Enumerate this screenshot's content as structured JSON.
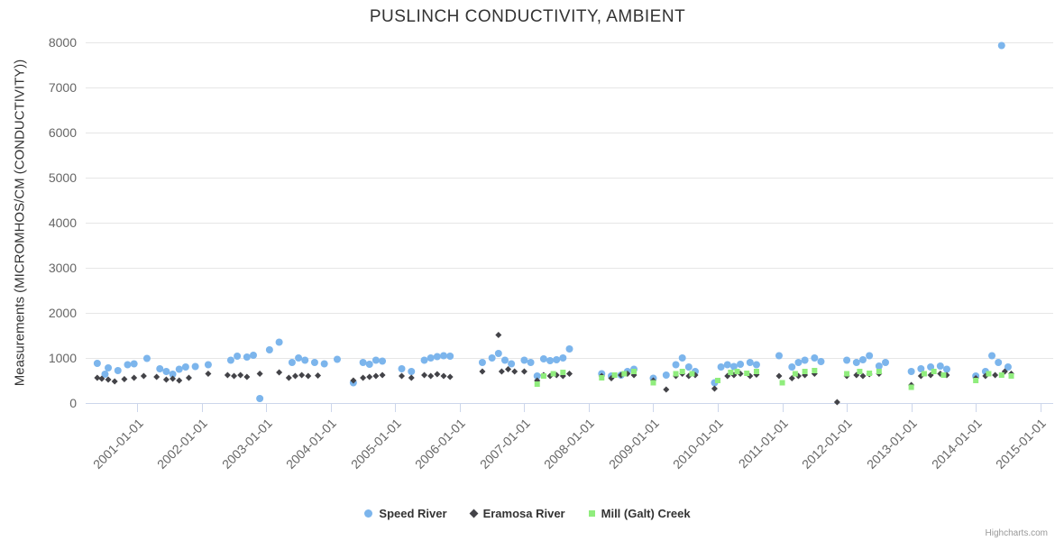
{
  "credits": "Highcharts.com",
  "chart_data": {
    "type": "scatter",
    "title": "PUSLINCH CONDUCTIVITY, AMBIENT",
    "xlabel": "",
    "ylabel": "Measurements (MICROMHOS/CM (CONDUCTIVITY))",
    "xlim": [
      2000.2,
      2015.2
    ],
    "ylim": [
      0,
      8000
    ],
    "yticks": [
      0,
      1000,
      2000,
      3000,
      4000,
      5000,
      6000,
      7000,
      8000
    ],
    "xticks": [
      2001,
      2002,
      2003,
      2004,
      2005,
      2006,
      2007,
      2008,
      2009,
      2010,
      2011,
      2012,
      2013,
      2014,
      2015
    ],
    "xtick_labels": [
      "2001-01-01",
      "2002-01-01",
      "2003-01-01",
      "2004-01-01",
      "2005-01-01",
      "2006-01-01",
      "2007-01-01",
      "2008-01-01",
      "2009-01-01",
      "2010-01-01",
      "2011-01-01",
      "2012-01-01",
      "2013-01-01",
      "2014-01-01",
      "2015-01-01"
    ],
    "grid": true,
    "legend_position": "bottom",
    "colors": {
      "grid": "#e6e6e6",
      "axis_line": "#ccd6eb",
      "title": "#333333",
      "tick_label": "#666666",
      "legend_text": "#333333",
      "credits": "#999999",
      "background": "#ffffff"
    },
    "series": [
      {
        "name": "Speed River",
        "marker": "circle",
        "color": "#7cb5ec",
        "points": [
          [
            2000.38,
            880
          ],
          [
            2000.5,
            640
          ],
          [
            2000.55,
            780
          ],
          [
            2000.7,
            720
          ],
          [
            2000.85,
            850
          ],
          [
            2000.95,
            870
          ],
          [
            2001.15,
            990
          ],
          [
            2001.35,
            760
          ],
          [
            2001.45,
            700
          ],
          [
            2001.55,
            640
          ],
          [
            2001.65,
            750
          ],
          [
            2001.75,
            800
          ],
          [
            2001.9,
            810
          ],
          [
            2002.1,
            850
          ],
          [
            2002.45,
            950
          ],
          [
            2002.55,
            1040
          ],
          [
            2002.7,
            1020
          ],
          [
            2002.8,
            1060
          ],
          [
            2002.9,
            100
          ],
          [
            2003.05,
            1180
          ],
          [
            2003.2,
            1350
          ],
          [
            2003.4,
            900
          ],
          [
            2003.5,
            1000
          ],
          [
            2003.6,
            950
          ],
          [
            2003.75,
            900
          ],
          [
            2003.9,
            870
          ],
          [
            2004.1,
            970
          ],
          [
            2004.35,
            450
          ],
          [
            2004.5,
            900
          ],
          [
            2004.6,
            860
          ],
          [
            2004.7,
            950
          ],
          [
            2004.8,
            930
          ],
          [
            2005.1,
            760
          ],
          [
            2005.25,
            700
          ],
          [
            2005.45,
            950
          ],
          [
            2005.55,
            1000
          ],
          [
            2005.65,
            1030
          ],
          [
            2005.75,
            1050
          ],
          [
            2005.85,
            1040
          ],
          [
            2006.35,
            900
          ],
          [
            2006.5,
            1000
          ],
          [
            2006.6,
            1100
          ],
          [
            2006.7,
            950
          ],
          [
            2006.8,
            870
          ],
          [
            2007.0,
            950
          ],
          [
            2007.1,
            900
          ],
          [
            2007.2,
            600
          ],
          [
            2007.3,
            980
          ],
          [
            2007.4,
            940
          ],
          [
            2007.5,
            960
          ],
          [
            2007.6,
            1000
          ],
          [
            2007.7,
            1200
          ],
          [
            2008.2,
            650
          ],
          [
            2008.35,
            600
          ],
          [
            2008.5,
            620
          ],
          [
            2008.6,
            700
          ],
          [
            2008.7,
            750
          ],
          [
            2009.0,
            550
          ],
          [
            2009.2,
            620
          ],
          [
            2009.35,
            850
          ],
          [
            2009.45,
            1000
          ],
          [
            2009.55,
            800
          ],
          [
            2009.65,
            700
          ],
          [
            2009.95,
            450
          ],
          [
            2010.05,
            800
          ],
          [
            2010.15,
            850
          ],
          [
            2010.25,
            810
          ],
          [
            2010.35,
            860
          ],
          [
            2010.5,
            900
          ],
          [
            2010.6,
            850
          ],
          [
            2010.95,
            1050
          ],
          [
            2011.15,
            800
          ],
          [
            2011.25,
            900
          ],
          [
            2011.35,
            950
          ],
          [
            2011.5,
            1000
          ],
          [
            2011.6,
            920
          ],
          [
            2012.0,
            950
          ],
          [
            2012.15,
            900
          ],
          [
            2012.25,
            960
          ],
          [
            2012.35,
            1050
          ],
          [
            2012.5,
            820
          ],
          [
            2012.6,
            900
          ],
          [
            2013.0,
            700
          ],
          [
            2013.15,
            760
          ],
          [
            2013.3,
            800
          ],
          [
            2013.45,
            820
          ],
          [
            2013.55,
            750
          ],
          [
            2014.0,
            600
          ],
          [
            2014.15,
            700
          ],
          [
            2014.25,
            1050
          ],
          [
            2014.35,
            900
          ],
          [
            2014.5,
            800
          ],
          [
            2014.4,
            7930
          ]
        ]
      },
      {
        "name": "Eramosa River",
        "marker": "diamond",
        "color": "#434348",
        "points": [
          [
            2000.38,
            560
          ],
          [
            2000.45,
            540
          ],
          [
            2000.55,
            520
          ],
          [
            2000.65,
            480
          ],
          [
            2000.8,
            530
          ],
          [
            2000.95,
            560
          ],
          [
            2001.1,
            600
          ],
          [
            2001.3,
            580
          ],
          [
            2001.45,
            520
          ],
          [
            2001.55,
            540
          ],
          [
            2001.65,
            500
          ],
          [
            2001.8,
            560
          ],
          [
            2002.1,
            650
          ],
          [
            2002.4,
            620
          ],
          [
            2002.5,
            600
          ],
          [
            2002.6,
            620
          ],
          [
            2002.7,
            580
          ],
          [
            2002.9,
            650
          ],
          [
            2003.2,
            680
          ],
          [
            2003.35,
            560
          ],
          [
            2003.45,
            600
          ],
          [
            2003.55,
            620
          ],
          [
            2003.65,
            600
          ],
          [
            2003.8,
            610
          ],
          [
            2004.35,
            500
          ],
          [
            2004.5,
            560
          ],
          [
            2004.6,
            580
          ],
          [
            2004.7,
            600
          ],
          [
            2004.8,
            620
          ],
          [
            2005.1,
            600
          ],
          [
            2005.25,
            560
          ],
          [
            2005.45,
            620
          ],
          [
            2005.55,
            600
          ],
          [
            2005.65,
            640
          ],
          [
            2005.75,
            600
          ],
          [
            2005.85,
            580
          ],
          [
            2006.35,
            700
          ],
          [
            2006.6,
            1510
          ],
          [
            2006.65,
            700
          ],
          [
            2006.75,
            750
          ],
          [
            2006.85,
            700
          ],
          [
            2007.0,
            700
          ],
          [
            2007.2,
            500
          ],
          [
            2007.3,
            620
          ],
          [
            2007.4,
            600
          ],
          [
            2007.5,
            620
          ],
          [
            2007.6,
            600
          ],
          [
            2007.7,
            650
          ],
          [
            2008.2,
            600
          ],
          [
            2008.35,
            550
          ],
          [
            2008.5,
            620
          ],
          [
            2008.6,
            650
          ],
          [
            2008.7,
            620
          ],
          [
            2009.0,
            500
          ],
          [
            2009.2,
            300
          ],
          [
            2009.35,
            600
          ],
          [
            2009.45,
            650
          ],
          [
            2009.55,
            600
          ],
          [
            2009.65,
            620
          ],
          [
            2009.95,
            320
          ],
          [
            2010.15,
            600
          ],
          [
            2010.25,
            620
          ],
          [
            2010.35,
            650
          ],
          [
            2010.5,
            600
          ],
          [
            2010.6,
            630
          ],
          [
            2010.95,
            600
          ],
          [
            2011.15,
            550
          ],
          [
            2011.25,
            600
          ],
          [
            2011.35,
            620
          ],
          [
            2011.5,
            650
          ],
          [
            2011.85,
            20
          ],
          [
            2012.0,
            600
          ],
          [
            2012.15,
            620
          ],
          [
            2012.25,
            600
          ],
          [
            2012.35,
            640
          ],
          [
            2012.5,
            650
          ],
          [
            2013.0,
            400
          ],
          [
            2013.15,
            600
          ],
          [
            2013.3,
            620
          ],
          [
            2013.45,
            650
          ],
          [
            2013.55,
            620
          ],
          [
            2014.0,
            550
          ],
          [
            2014.15,
            600
          ],
          [
            2014.3,
            620
          ],
          [
            2014.45,
            700
          ],
          [
            2014.55,
            650
          ]
        ]
      },
      {
        "name": "Mill (Galt) Creek",
        "marker": "square",
        "color": "#90ed7d",
        "points": [
          [
            2007.2,
            420
          ],
          [
            2007.3,
            600
          ],
          [
            2007.45,
            650
          ],
          [
            2007.6,
            680
          ],
          [
            2008.2,
            560
          ],
          [
            2008.4,
            620
          ],
          [
            2008.55,
            650
          ],
          [
            2008.7,
            700
          ],
          [
            2009.0,
            450
          ],
          [
            2009.35,
            650
          ],
          [
            2009.45,
            700
          ],
          [
            2009.6,
            650
          ],
          [
            2010.0,
            500
          ],
          [
            2010.2,
            680
          ],
          [
            2010.3,
            700
          ],
          [
            2010.45,
            660
          ],
          [
            2010.6,
            700
          ],
          [
            2011.0,
            450
          ],
          [
            2011.2,
            650
          ],
          [
            2011.35,
            700
          ],
          [
            2011.5,
            720
          ],
          [
            2012.0,
            650
          ],
          [
            2012.2,
            700
          ],
          [
            2012.35,
            660
          ],
          [
            2012.5,
            700
          ],
          [
            2013.0,
            350
          ],
          [
            2013.2,
            650
          ],
          [
            2013.35,
            700
          ],
          [
            2013.5,
            620
          ],
          [
            2014.0,
            500
          ],
          [
            2014.2,
            650
          ],
          [
            2014.4,
            620
          ],
          [
            2014.55,
            600
          ]
        ]
      }
    ]
  }
}
